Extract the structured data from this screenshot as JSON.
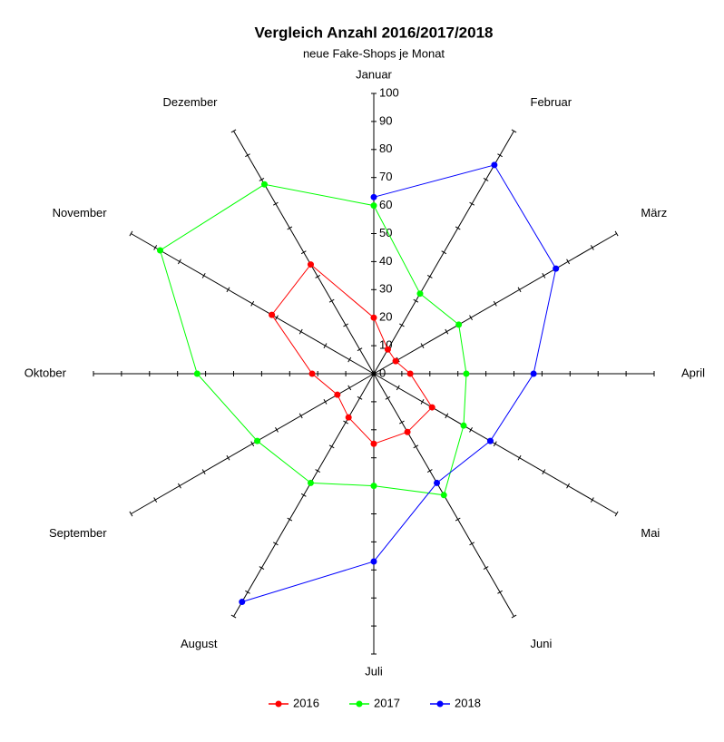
{
  "chart_data": {
    "type": "radar",
    "title": "Vergleich Anzahl 2016/2017/2018",
    "subtitle": "neue Fake-Shops je Monat",
    "categories": [
      "Januar",
      "Februar",
      "März",
      "April",
      "Mai",
      "Juni",
      "Juli",
      "August",
      "September",
      "Oktober",
      "November",
      "Dezember"
    ],
    "series": [
      {
        "name": "2016",
        "color": "#ff0000",
        "closed": true,
        "values": [
          20,
          10,
          9,
          13,
          24,
          24,
          25,
          18,
          15,
          22,
          42,
          45
        ]
      },
      {
        "name": "2017",
        "color": "#00ff00",
        "closed": true,
        "values": [
          60,
          33,
          35,
          33,
          37,
          50,
          40,
          45,
          48,
          63,
          88,
          78
        ]
      },
      {
        "name": "2018",
        "color": "#0000ff",
        "closed": false,
        "values": [
          63,
          86,
          75,
          57,
          48,
          45,
          67,
          94,
          null,
          null,
          null,
          null
        ]
      }
    ],
    "rlim": [
      0,
      100
    ],
    "rticks": [
      0,
      10,
      20,
      30,
      40,
      50,
      60,
      70,
      80,
      90,
      100
    ]
  }
}
